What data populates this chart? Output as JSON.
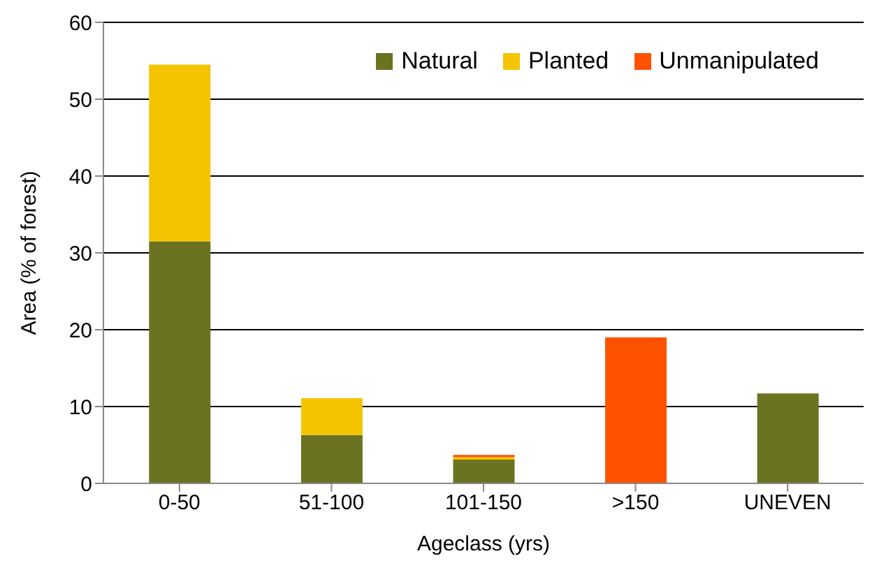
{
  "chart_data": {
    "type": "bar",
    "stacked": true,
    "xlabel": "Ageclass (yrs)",
    "ylabel": "Area (% of forest)",
    "categories": [
      "0-50",
      "51-100",
      "101-150",
      ">150",
      "UNEVEN"
    ],
    "series": [
      {
        "name": "Natural",
        "color": "#6b7320",
        "values": [
          31.5,
          6.3,
          3.1,
          null,
          11.7
        ]
      },
      {
        "name": "Planted",
        "color": "#f5c400",
        "values": [
          23.0,
          4.8,
          0.3,
          null,
          null
        ]
      },
      {
        "name": "Unmanipulated",
        "color": "#ff5200",
        "values": [
          null,
          null,
          0.3,
          19.0,
          null
        ]
      }
    ],
    "ylim": [
      0,
      60
    ],
    "yticks": [
      0,
      10,
      20,
      30,
      40,
      50,
      60
    ],
    "grid": "y",
    "legend": "top right"
  }
}
